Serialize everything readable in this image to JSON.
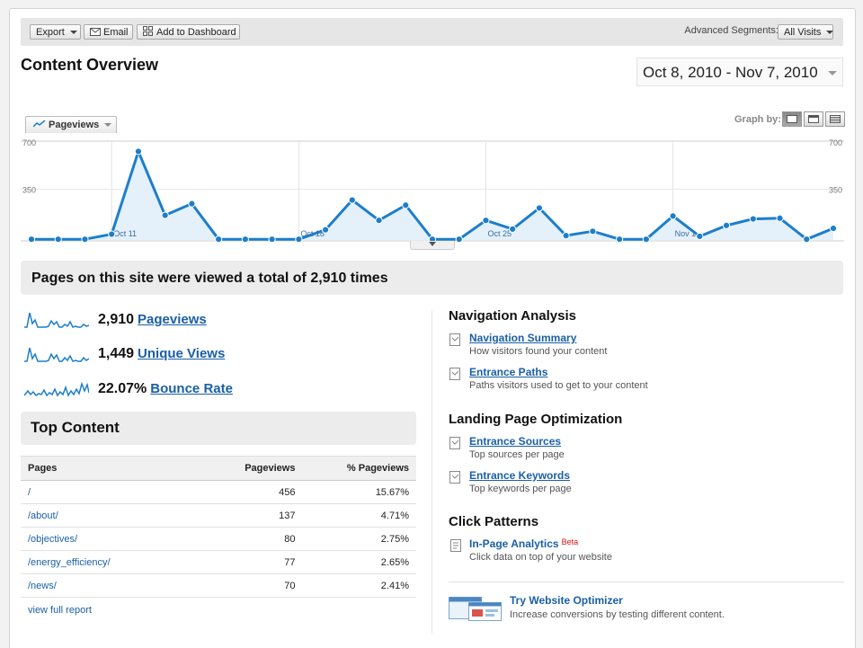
{
  "toolbar": {
    "export_label": "Export",
    "email_label": "Email",
    "dashboard_label": "Add to Dashboard",
    "segments_label": "Advanced Segments:",
    "segments_value": "All Visits"
  },
  "page_title": "Content Overview",
  "date_range": "Oct 8, 2010 - Nov 7, 2010",
  "graph": {
    "metric_selector": "Pageviews",
    "graph_by_label": "Graph by:",
    "y_labels_left": [
      "700",
      "350"
    ],
    "y_labels_right": [
      "700",
      "350"
    ],
    "x_labels": [
      "Oct 11",
      "Oct 18",
      "Oct 25",
      "Nov 1"
    ],
    "line_color": "#1c7ecc",
    "fill_color": "#e4f0fa"
  },
  "chart_data": {
    "type": "area",
    "x": [
      "Oct 8",
      "Oct 9",
      "Oct 10",
      "Oct 11",
      "Oct 12",
      "Oct 13",
      "Oct 14",
      "Oct 15",
      "Oct 16",
      "Oct 17",
      "Oct 18",
      "Oct 19",
      "Oct 20",
      "Oct 21",
      "Oct 22",
      "Oct 23",
      "Oct 24",
      "Oct 25",
      "Oct 26",
      "Oct 27",
      "Oct 28",
      "Oct 29",
      "Oct 30",
      "Oct 31",
      "Nov 1",
      "Nov 2",
      "Nov 3",
      "Nov 4",
      "Nov 5",
      "Nov 6",
      "Nov 7"
    ],
    "series": [
      {
        "name": "Pageviews",
        "values": [
          5,
          5,
          5,
          40,
          610,
          170,
          250,
          5,
          5,
          5,
          5,
          70,
          275,
          135,
          240,
          5,
          5,
          135,
          75,
          220,
          30,
          60,
          5,
          5,
          165,
          25,
          100,
          145,
          150,
          5,
          80
        ]
      }
    ],
    "ylim": [
      0,
      700
    ],
    "y_ticks": [
      350,
      700
    ],
    "x_ticks": [
      "Oct 11",
      "Oct 18",
      "Oct 25",
      "Nov 1"
    ],
    "grid": true
  },
  "summary": {
    "prefix": "Pages on this site were viewed a total of ",
    "total": "2,910",
    "suffix": " times"
  },
  "stats": [
    {
      "value": "2,910",
      "label": "Pageviews"
    },
    {
      "value": "1,449",
      "label": "Unique Views"
    },
    {
      "value": "22.07%",
      "label": "Bounce Rate"
    }
  ],
  "top_content": {
    "title": "Top Content",
    "columns": [
      "Pages",
      "Pageviews",
      "% Pageviews"
    ],
    "rows": [
      {
        "page": "/",
        "pageviews": "456",
        "pct": "15.67%"
      },
      {
        "page": "/about/",
        "pageviews": "137",
        "pct": "4.71%"
      },
      {
        "page": "/objectives/",
        "pageviews": "80",
        "pct": "2.75%"
      },
      {
        "page": "/energy_efficiency/",
        "pageviews": "77",
        "pct": "2.65%"
      },
      {
        "page": "/news/",
        "pageviews": "70",
        "pct": "2.41%"
      }
    ],
    "full_report_label": "view full report"
  },
  "navigation_analysis": {
    "title": "Navigation Analysis",
    "items": [
      {
        "label": "Navigation Summary",
        "desc": "How visitors found your content"
      },
      {
        "label": "Entrance Paths",
        "desc": "Paths visitors used to get to your content"
      }
    ]
  },
  "landing_page": {
    "title": "Landing Page Optimization",
    "items": [
      {
        "label": "Entrance Sources",
        "desc": "Top sources per page"
      },
      {
        "label": "Entrance Keywords",
        "desc": "Top keywords per page"
      }
    ]
  },
  "click_patterns": {
    "title": "Click Patterns",
    "items": [
      {
        "label": "In-Page Analytics",
        "badge": "Beta",
        "desc": "Click data on top of your website"
      }
    ]
  },
  "optimizer": {
    "label": "Try Website Optimizer",
    "desc": "Increase conversions by testing different content."
  }
}
